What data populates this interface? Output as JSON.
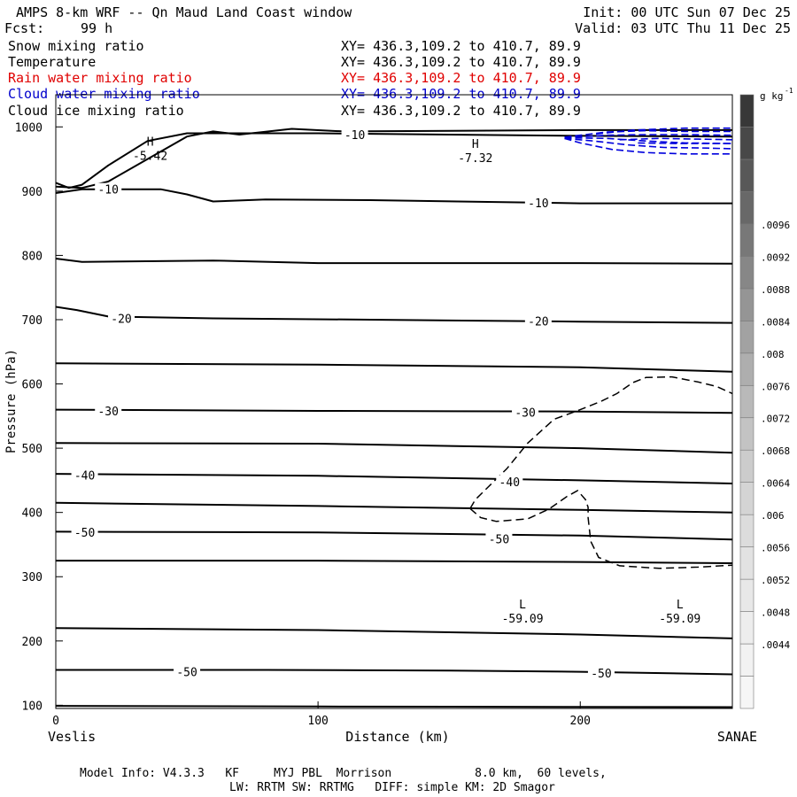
{
  "header": {
    "title": "AMPS 8-km WRF -- Qn Maud Land Coast window",
    "init": "Init: 00 UTC Sun 07 Dec 25",
    "fcst_label": "Fcst:",
    "fcst_hours": "99 h",
    "valid": "Valid: 03 UTC Thu 11 Dec 25"
  },
  "fields": [
    {
      "name": "Snow mixing ratio",
      "xy": "XY= 436.3,109.2 to 410.7, 89.9",
      "color": "#000000"
    },
    {
      "name": "Temperature",
      "xy": "XY= 436.3,109.2 to 410.7, 89.9",
      "color": "#000000"
    },
    {
      "name": "Rain water mixing ratio",
      "xy": "XY= 436.3,109.2 to 410.7, 89.9",
      "color": "#e00000"
    },
    {
      "name": "Cloud water mixing ratio",
      "xy": "XY= 436.3,109.2 to 410.7, 89.9",
      "color": "#0000cc"
    },
    {
      "name": "Cloud ice mixing ratio",
      "xy": "XY= 436.3,109.2 to 410.7, 89.9",
      "color": "#000000"
    }
  ],
  "chart_data": {
    "type": "contour",
    "xlabel": "Distance (km)",
    "ylabel": "Pressure (hPa)",
    "xlim": [
      0,
      258
    ],
    "ylim": [
      1050,
      95
    ],
    "x_ticks": [
      0,
      100,
      200
    ],
    "x_tick_labels": [
      "0",
      "100",
      "200"
    ],
    "y_ticks": [
      100,
      200,
      300,
      400,
      500,
      600,
      700,
      800,
      900,
      1000
    ],
    "y_tick_labels": [
      "100",
      "200",
      "300",
      "400",
      "500",
      "600",
      "700",
      "800",
      "900",
      "1000"
    ],
    "left_endpoint": "Veslis",
    "right_endpoint": "SANAE",
    "temperature_contours": [
      {
        "points": [
          [
            0,
            99
          ],
          [
            100,
            98
          ],
          [
            258,
            97
          ]
        ]
      },
      {
        "points": [
          [
            0,
            155
          ],
          [
            80,
            155
          ],
          [
            150,
            154
          ],
          [
            200,
            152
          ],
          [
            258,
            148
          ]
        ]
      },
      {
        "points": [
          [
            0,
            220
          ],
          [
            100,
            217
          ],
          [
            200,
            210
          ],
          [
            258,
            204
          ]
        ]
      },
      {
        "points": [
          [
            0,
            325
          ],
          [
            100,
            325
          ],
          [
            200,
            323
          ],
          [
            258,
            321
          ]
        ]
      },
      {
        "points": [
          [
            0,
            370
          ],
          [
            100,
            369
          ],
          [
            200,
            364
          ],
          [
            258,
            358
          ]
        ]
      },
      {
        "points": [
          [
            0,
            415
          ],
          [
            100,
            410
          ],
          [
            200,
            404
          ],
          [
            258,
            400
          ]
        ]
      },
      {
        "points": [
          [
            0,
            460
          ],
          [
            100,
            457
          ],
          [
            200,
            450
          ],
          [
            258,
            445
          ]
        ]
      },
      {
        "points": [
          [
            0,
            508
          ],
          [
            100,
            507
          ],
          [
            200,
            500
          ],
          [
            258,
            493
          ]
        ]
      },
      {
        "points": [
          [
            0,
            560
          ],
          [
            100,
            558
          ],
          [
            200,
            557
          ],
          [
            258,
            555
          ]
        ]
      },
      {
        "points": [
          [
            0,
            632
          ],
          [
            100,
            630
          ],
          [
            200,
            626
          ],
          [
            258,
            619
          ]
        ]
      },
      {
        "points": [
          [
            0,
            720
          ],
          [
            8,
            715
          ],
          [
            20,
            705
          ],
          [
            60,
            702
          ],
          [
            120,
            700
          ],
          [
            200,
            697
          ],
          [
            258,
            695
          ]
        ]
      },
      {
        "points": [
          [
            0,
            795
          ],
          [
            10,
            790
          ],
          [
            60,
            792
          ],
          [
            100,
            788
          ],
          [
            200,
            788
          ],
          [
            258,
            787
          ]
        ]
      },
      {
        "points": [
          [
            0,
            897
          ],
          [
            10,
            903
          ],
          [
            40,
            903
          ],
          [
            50,
            895
          ],
          [
            60,
            884
          ],
          [
            80,
            887
          ],
          [
            120,
            886
          ],
          [
            200,
            881
          ],
          [
            258,
            881
          ]
        ]
      },
      {
        "points": [
          [
            0,
            907
          ],
          [
            10,
            905
          ],
          [
            20,
            915
          ],
          [
            35,
            950
          ],
          [
            50,
            985
          ],
          [
            60,
            993
          ],
          [
            70,
            988
          ],
          [
            90,
            997
          ],
          [
            110,
            993
          ],
          [
            200,
            995
          ],
          [
            258,
            995
          ]
        ]
      },
      {
        "points": [
          [
            0,
            913
          ],
          [
            5,
            905
          ],
          [
            10,
            910
          ],
          [
            20,
            940
          ],
          [
            35,
            978
          ],
          [
            50,
            990
          ],
          [
            100,
            990
          ],
          [
            150,
            988
          ],
          [
            200,
            986
          ],
          [
            258,
            985
          ]
        ]
      }
    ],
    "temperature_labels": [
      {
        "x": 50,
        "p": 152,
        "text": "-50"
      },
      {
        "x": 208,
        "p": 150,
        "text": "-50"
      },
      {
        "x": 11,
        "p": 369,
        "text": "-50"
      },
      {
        "x": 169,
        "p": 359,
        "text": "-50"
      },
      {
        "x": 11,
        "p": 458,
        "text": "-40"
      },
      {
        "x": 173,
        "p": 448,
        "text": "-40"
      },
      {
        "x": 20,
        "p": 558,
        "text": "-30"
      },
      {
        "x": 179,
        "p": 556,
        "text": "-30"
      },
      {
        "x": 25,
        "p": 702,
        "text": "-20"
      },
      {
        "x": 184,
        "p": 698,
        "text": "-20"
      },
      {
        "x": 20,
        "p": 903,
        "text": "-10"
      },
      {
        "x": 184,
        "p": 882,
        "text": "-10"
      },
      {
        "x": 114,
        "p": 988,
        "text": "-10"
      }
    ],
    "extrema": [
      {
        "type": "H",
        "x": 36,
        "p": 965,
        "value": "-5.42"
      },
      {
        "type": "H",
        "x": 160,
        "p": 962,
        "value": "-7.32"
      },
      {
        "type": "L",
        "x": 178,
        "p": 245,
        "value": "-59.09"
      },
      {
        "type": "L",
        "x": 238,
        "p": 245,
        "value": "-59.09"
      }
    ],
    "ice_contours": [
      {
        "points": [
          [
            158,
            406
          ],
          [
            162,
            392
          ],
          [
            168,
            386
          ],
          [
            180,
            390
          ],
          [
            188,
            405
          ],
          [
            195,
            425
          ],
          [
            199,
            434
          ],
          [
            202,
            420
          ],
          [
            203,
            408
          ],
          [
            203,
            392
          ],
          [
            204,
            355
          ],
          [
            207,
            330
          ],
          [
            215,
            317
          ],
          [
            230,
            313
          ],
          [
            245,
            315
          ],
          [
            258,
            318
          ]
        ]
      },
      {
        "points": [
          [
            158,
            406
          ],
          [
            160,
            420
          ],
          [
            165,
            440
          ],
          [
            172,
            468
          ],
          [
            180,
            508
          ],
          [
            190,
            545
          ],
          [
            200,
            560
          ],
          [
            208,
            573
          ],
          [
            214,
            585
          ],
          [
            220,
            602
          ],
          [
            225,
            610
          ],
          [
            235,
            611
          ],
          [
            245,
            603
          ],
          [
            252,
            596
          ],
          [
            258,
            585
          ]
        ]
      }
    ],
    "cloud_water_contours": [
      {
        "points": [
          [
            194,
            982
          ],
          [
            200,
            975
          ],
          [
            212,
            965
          ],
          [
            225,
            960
          ],
          [
            240,
            958
          ],
          [
            258,
            958
          ]
        ]
      },
      {
        "points": [
          [
            194,
            982
          ],
          [
            205,
            978
          ],
          [
            218,
            972
          ],
          [
            232,
            968
          ],
          [
            248,
            967
          ],
          [
            258,
            966
          ]
        ]
      },
      {
        "points": [
          [
            194,
            983
          ],
          [
            210,
            982
          ],
          [
            225,
            978
          ],
          [
            240,
            975
          ],
          [
            258,
            974
          ]
        ]
      },
      {
        "points": [
          [
            194,
            983
          ],
          [
            210,
            987
          ],
          [
            225,
            988
          ],
          [
            240,
            988
          ],
          [
            258,
            987
          ]
        ]
      },
      {
        "points": [
          [
            194,
            984
          ],
          [
            210,
            992
          ],
          [
            225,
            994
          ],
          [
            240,
            993
          ],
          [
            258,
            993
          ]
        ]
      },
      {
        "points": [
          [
            206,
            989
          ],
          [
            220,
            995
          ],
          [
            240,
            998
          ],
          [
            258,
            998
          ]
        ]
      },
      {
        "points": [
          [
            215,
            980
          ],
          [
            230,
            982
          ],
          [
            245,
            981
          ],
          [
            258,
            980
          ]
        ]
      },
      {
        "points": [
          [
            222,
            975
          ],
          [
            238,
            974
          ],
          [
            258,
            974
          ]
        ]
      }
    ],
    "colorbar": {
      "unit_label": "g kg",
      "unit_superscript": "-1",
      "levels": [
        ".0044",
        ".0048",
        ".0052",
        ".0056",
        ".006",
        ".0064",
        ".0068",
        ".0072",
        ".0076",
        ".008",
        ".0084",
        ".0088",
        ".0092",
        ".0096"
      ],
      "colors": [
        "#f6f6f6",
        "#f2f2f2",
        "#ededed",
        "#e8e8e8",
        "#e2e2e2",
        "#dcdcdc",
        "#d4d4d4",
        "#cccccc",
        "#c3c3c3",
        "#b9b9b9",
        "#aeaeae",
        "#a2a2a2",
        "#959595",
        "#878787",
        "#787878",
        "#686868",
        "#585858",
        "#484848",
        "#383838"
      ]
    }
  },
  "footer": {
    "line1": "Model Info: V4.3.3   KF     MYJ PBL  Morrison            8.0 km,  60 levels,",
    "line2": "LW: RRTM SW: RRTMG   DIFF: simple KM: 2D Smagor"
  }
}
